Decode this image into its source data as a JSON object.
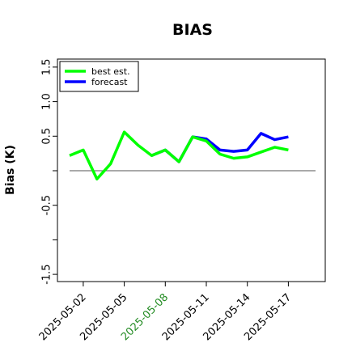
{
  "chart_data": {
    "type": "line",
    "title": "BIAS",
    "xlabel": "",
    "ylabel": "Bias (K)",
    "ylim": [
      -1.6,
      1.65
    ],
    "yticks": [
      -1.5,
      -1.0,
      -0.5,
      0.0,
      0.5,
      1.0,
      1.5
    ],
    "ytick_labels": [
      "-1.5",
      "",
      "-0.5",
      "",
      "0.5",
      "1.0",
      "1.5"
    ],
    "x_start": "2025-05-01",
    "x": [
      "2025-05-01",
      "2025-05-02",
      "2025-05-03",
      "2025-05-04",
      "2025-05-05",
      "2025-05-06",
      "2025-05-07",
      "2025-05-08",
      "2025-05-09",
      "2025-05-10",
      "2025-05-11",
      "2025-05-12",
      "2025-05-13",
      "2025-05-14",
      "2025-05-15",
      "2025-05-16",
      "2025-05-17"
    ],
    "xticks": [
      {
        "label": "2025-05-02",
        "color": "#000000"
      },
      {
        "label": "2025-05-05",
        "color": "#000000"
      },
      {
        "label": "2025-05-08",
        "color": "#228B22"
      },
      {
        "label": "2025-05-11",
        "color": "#000000"
      },
      {
        "label": "2025-05-14",
        "color": "#000000"
      },
      {
        "label": "2025-05-17",
        "color": "#000000"
      }
    ],
    "reference_line": 0.0,
    "legend_position": "top-left",
    "series": [
      {
        "name": "best est.",
        "color": "#00ff00",
        "values": [
          0.22,
          0.3,
          -0.12,
          0.1,
          0.56,
          0.37,
          0.22,
          0.3,
          0.13,
          0.49,
          0.43,
          0.24,
          0.18,
          0.2,
          0.27,
          0.34,
          0.3
        ]
      },
      {
        "name": "forecast",
        "color": "#0000ff",
        "values": [
          null,
          null,
          null,
          null,
          null,
          null,
          0.22,
          0.3,
          0.13,
          0.49,
          0.46,
          0.3,
          0.28,
          0.3,
          0.54,
          0.45,
          0.49
        ]
      }
    ]
  }
}
